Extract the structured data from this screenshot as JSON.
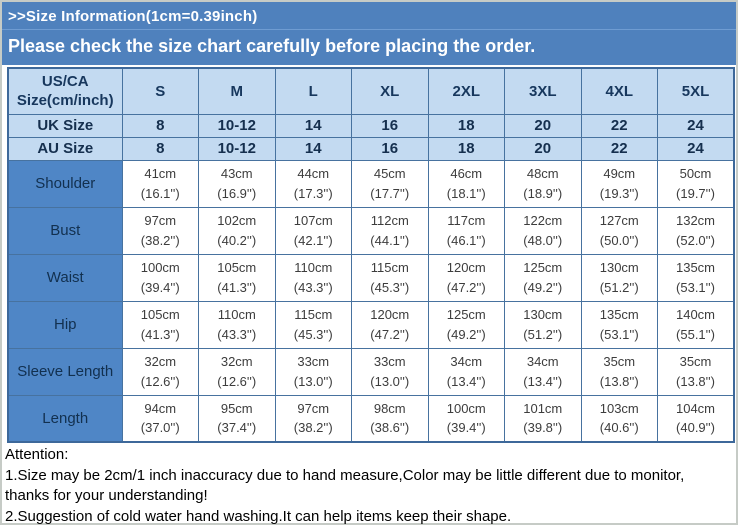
{
  "header": {
    "size_info_line": ">>Size Information(1cm=0.39inch)",
    "notice_line": "Please check the size chart carefully before placing the order."
  },
  "size_chart": {
    "corner": {
      "line1": "US/CA",
      "line2": "Size(cm/inch)"
    },
    "columns": [
      "S",
      "M",
      "L",
      "XL",
      "2XL",
      "3XL",
      "4XL",
      "5XL"
    ],
    "size_rows": [
      {
        "label": "UK Size",
        "values": [
          "8",
          "10-12",
          "14",
          "16",
          "18",
          "20",
          "22",
          "24"
        ]
      },
      {
        "label": "AU Size",
        "values": [
          "8",
          "10-12",
          "14",
          "16",
          "18",
          "20",
          "22",
          "24"
        ]
      }
    ],
    "measure_rows": [
      {
        "label": "Shoulder",
        "values": [
          {
            "cm": "41cm",
            "inch": "(16.1'')"
          },
          {
            "cm": "43cm",
            "inch": "(16.9'')"
          },
          {
            "cm": "44cm",
            "inch": "(17.3'')"
          },
          {
            "cm": "45cm",
            "inch": "(17.7'')"
          },
          {
            "cm": "46cm",
            "inch": "(18.1'')"
          },
          {
            "cm": "48cm",
            "inch": "(18.9'')"
          },
          {
            "cm": "49cm",
            "inch": "(19.3'')"
          },
          {
            "cm": "50cm",
            "inch": "(19.7'')"
          }
        ]
      },
      {
        "label": "Bust",
        "values": [
          {
            "cm": "97cm",
            "inch": "(38.2'')"
          },
          {
            "cm": "102cm",
            "inch": "(40.2'')"
          },
          {
            "cm": "107cm",
            "inch": "(42.1'')"
          },
          {
            "cm": "112cm",
            "inch": "(44.1'')"
          },
          {
            "cm": "117cm",
            "inch": "(46.1'')"
          },
          {
            "cm": "122cm",
            "inch": "(48.0'')"
          },
          {
            "cm": "127cm",
            "inch": "(50.0'')"
          },
          {
            "cm": "132cm",
            "inch": "(52.0'')"
          }
        ]
      },
      {
        "label": "Waist",
        "values": [
          {
            "cm": "100cm",
            "inch": "(39.4'')"
          },
          {
            "cm": "105cm",
            "inch": "(41.3'')"
          },
          {
            "cm": "110cm",
            "inch": "(43.3'')"
          },
          {
            "cm": "115cm",
            "inch": "(45.3'')"
          },
          {
            "cm": "120cm",
            "inch": "(47.2'')"
          },
          {
            "cm": "125cm",
            "inch": "(49.2'')"
          },
          {
            "cm": "130cm",
            "inch": "(51.2'')"
          },
          {
            "cm": "135cm",
            "inch": "(53.1'')"
          }
        ]
      },
      {
        "label": "Hip",
        "values": [
          {
            "cm": "105cm",
            "inch": "(41.3'')"
          },
          {
            "cm": "110cm",
            "inch": "(43.3'')"
          },
          {
            "cm": "115cm",
            "inch": "(45.3'')"
          },
          {
            "cm": "120cm",
            "inch": "(47.2'')"
          },
          {
            "cm": "125cm",
            "inch": "(49.2'')"
          },
          {
            "cm": "130cm",
            "inch": "(51.2'')"
          },
          {
            "cm": "135cm",
            "inch": "(53.1'')"
          },
          {
            "cm": "140cm",
            "inch": "(55.1'')"
          }
        ]
      },
      {
        "label": "Sleeve Length",
        "values": [
          {
            "cm": "32cm",
            "inch": "(12.6'')"
          },
          {
            "cm": "32cm",
            "inch": "(12.6'')"
          },
          {
            "cm": "33cm",
            "inch": "(13.0'')"
          },
          {
            "cm": "33cm",
            "inch": "(13.0'')"
          },
          {
            "cm": "34cm",
            "inch": "(13.4'')"
          },
          {
            "cm": "34cm",
            "inch": "(13.4'')"
          },
          {
            "cm": "35cm",
            "inch": "(13.8'')"
          },
          {
            "cm": "35cm",
            "inch": "(13.8'')"
          }
        ]
      },
      {
        "label": "Length",
        "values": [
          {
            "cm": "94cm",
            "inch": "(37.0'')"
          },
          {
            "cm": "95cm",
            "inch": "(37.4'')"
          },
          {
            "cm": "97cm",
            "inch": "(38.2'')"
          },
          {
            "cm": "98cm",
            "inch": "(38.6'')"
          },
          {
            "cm": "100cm",
            "inch": "(39.4'')"
          },
          {
            "cm": "101cm",
            "inch": "(39.8'')"
          },
          {
            "cm": "103cm",
            "inch": "(40.6'')"
          },
          {
            "cm": "104cm",
            "inch": "(40.9'')"
          }
        ]
      }
    ]
  },
  "attention": {
    "heading": "Attention:",
    "notes": [
      "1.Size may be 2cm/1 inch inaccuracy due to hand measure,Color may be little different due to monitor, thanks for your understanding!",
      "2.Suggestion of cold water hand washing.It can help items keep their shape."
    ]
  },
  "colors": {
    "banner_blue": "#4f81bd",
    "header_light_blue": "#c3daf1",
    "label_column_blue": "#4f86c6",
    "table_border_blue": "#47729f",
    "header_text_navy": "#17375d",
    "cell_text_gray": "#3d3d3d"
  }
}
